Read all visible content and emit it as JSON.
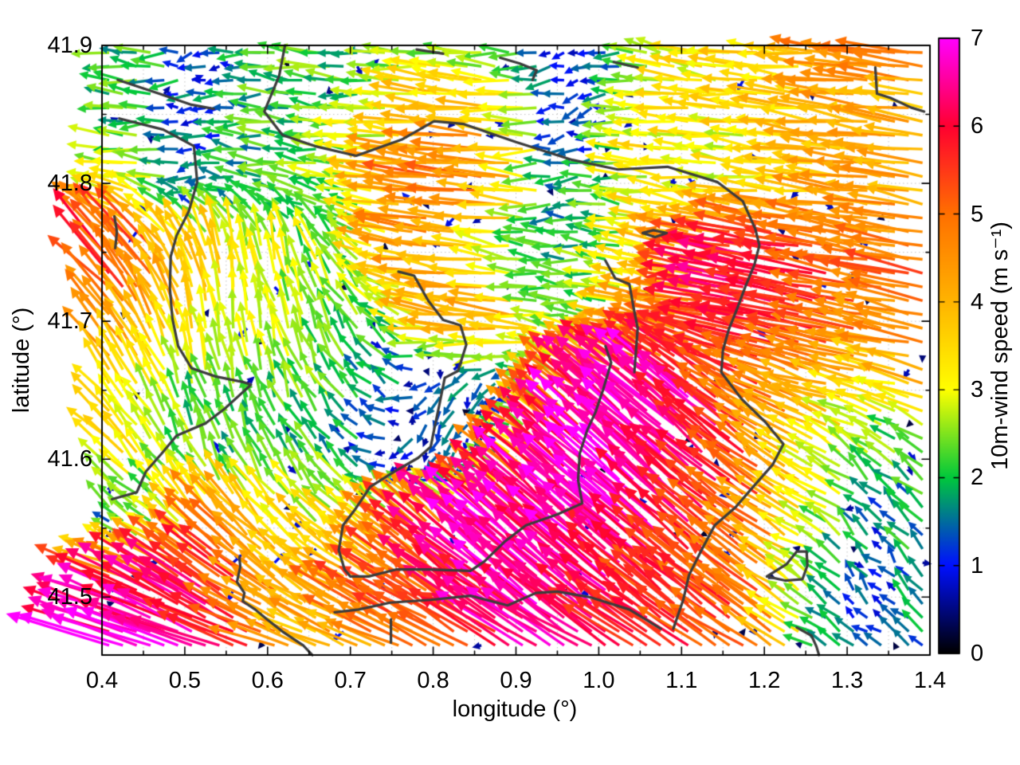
{
  "chart_data": {
    "type": "quiver",
    "title": "",
    "xlabel": "longitude (°)",
    "ylabel": "latitude (°)",
    "xlim": [
      0.4,
      1.4
    ],
    "ylim": [
      41.458,
      41.9
    ],
    "x_ticks": {
      "values": [
        0.4,
        0.5,
        0.6,
        0.7,
        0.8,
        0.9,
        1.0,
        1.1,
        1.2,
        1.3,
        1.4
      ],
      "labels": [
        "0.4",
        "0.5",
        "0.6",
        "0.7",
        "0.8",
        "0.9",
        "1.0",
        "1.1",
        "1.2",
        "1.3",
        "1.4"
      ]
    },
    "y_ticks": {
      "values": [
        41.5,
        41.6,
        41.7,
        41.8,
        41.9
      ],
      "labels": [
        "41.5",
        "41.6",
        "41.7",
        "41.8",
        "41.9"
      ]
    },
    "minor_tick_step": 0.05,
    "grid": {
      "style": "dotted",
      "step": 0.05,
      "color": "#c3c3c3"
    },
    "contour_color": "#3c3c3c",
    "colorbar": {
      "label": "10m-wind speed (m s⁻¹)",
      "min": 0,
      "max": 7,
      "tick_labels": [
        "0",
        "1",
        "2",
        "3",
        "4",
        "5",
        "6",
        "7"
      ],
      "palette_stops": [
        [
          0,
          "#000000"
        ],
        [
          1,
          "#0010FF"
        ],
        [
          2,
          "#00C83C"
        ],
        [
          3,
          "#FFFF00"
        ],
        [
          4,
          "#FFB400"
        ],
        [
          5,
          "#FF7000"
        ],
        [
          6,
          "#FF0030"
        ],
        [
          7,
          "#FF00FF"
        ]
      ]
    },
    "wind_field": {
      "units": "m s⁻¹",
      "lon": [
        0.4,
        0.45,
        0.5,
        0.55,
        0.6,
        0.65,
        0.7,
        0.75,
        0.8,
        0.85,
        0.9,
        0.95,
        1.0,
        1.05,
        1.1,
        1.15,
        1.2,
        1.25,
        1.3,
        1.35,
        1.4
      ],
      "lat": [
        41.9,
        41.85,
        41.8,
        41.75,
        41.7,
        41.65,
        41.6,
        41.55,
        41.5,
        41.46
      ],
      "u": [
        [
          -2,
          -2.2,
          -1.6,
          -1,
          -2,
          -2.3,
          -2,
          -2.2,
          -2.5,
          -2.2,
          -2,
          -0.9,
          -1,
          -2.5,
          -3,
          -3.3,
          -3.5,
          -3.2,
          -4.5,
          -5,
          -4.5
        ],
        [
          -2.2,
          -2,
          -1.2,
          -1.5,
          -2,
          -2.2,
          -2.4,
          -3,
          -4,
          -4.2,
          -3.5,
          -1,
          -1.2,
          -3,
          -3.2,
          -3,
          -3.4,
          -3.6,
          -3.8,
          -4,
          -3.8
        ],
        [
          -3,
          -3,
          -1.2,
          -1.8,
          -2,
          -2.2,
          -2.5,
          -3.8,
          -4.8,
          -5,
          -4,
          -1.5,
          -1.8,
          -3,
          -3.2,
          -3,
          -3.2,
          -3.5,
          -4,
          -4.2,
          -4
        ],
        [
          -4,
          -3.5,
          -1.8,
          -0.8,
          -0.5,
          -1,
          -1.5,
          -3.5,
          -4.2,
          -4,
          -2.2,
          -2,
          -2.2,
          -3,
          -3.5,
          -5.5,
          -6.3,
          -5.5,
          -5,
          -4.8,
          -5
        ],
        [
          -3.5,
          -2,
          -1,
          -0.6,
          -0.7,
          -0.8,
          -1.2,
          -2,
          -3.5,
          -4.2,
          -4,
          -2.2,
          -2.4,
          -3.8,
          -4.2,
          -5.5,
          -5.8,
          -5.5,
          -5.2,
          -4.5,
          -4.8
        ],
        [
          -2.2,
          -1.5,
          -0.8,
          -0.6,
          -0.8,
          -1,
          -1.4,
          -1.2,
          -0.8,
          -0.5,
          -0.8,
          -3,
          -4.5,
          -5,
          -5,
          -5,
          -4.5,
          -4,
          -3.5,
          -3,
          -3.5
        ],
        [
          -2.5,
          -2,
          -1,
          -0.8,
          -1,
          -1.2,
          -1.2,
          -0.8,
          -0.5,
          -0.6,
          -3.5,
          -4.5,
          -5,
          -5,
          -4.8,
          -4.5,
          -4,
          -3,
          -2,
          -1.5,
          -2
        ],
        [
          -1.5,
          -2,
          -2.5,
          -3.2,
          -2.5,
          -2,
          -2.5,
          -3,
          -4,
          -5,
          -5.2,
          -5,
          -5.2,
          -5,
          -4.8,
          -4.5,
          -4,
          -3,
          -1.5,
          -1,
          -1.5
        ],
        [
          -6,
          -6,
          -5.5,
          -5,
          -4,
          -3,
          -4,
          -4.5,
          -4.5,
          -5,
          -5,
          -5,
          -5,
          -4.8,
          -4.5,
          -4.2,
          -4,
          -2,
          -1,
          -0.8,
          -1
        ],
        [
          -6.5,
          -6.5,
          -6,
          -5.5,
          -4.5,
          -3.5,
          -3.8,
          -4,
          -4.5,
          -5,
          -5.5,
          -5.5,
          -5.2,
          -5,
          -4.8,
          -4.5,
          -4.2,
          -2,
          -1,
          -0.6,
          -0.8
        ]
      ],
      "v": [
        [
          0.3,
          0.2,
          -0.3,
          -0.3,
          0,
          0.2,
          0.3,
          0,
          0.3,
          0.2,
          0.1,
          -0.4,
          -0.5,
          0.4,
          0.5,
          0.3,
          0.4,
          0.3,
          0.6,
          0.5,
          0.5
        ],
        [
          0.2,
          0,
          -0.2,
          0,
          0.2,
          0.3,
          0.2,
          0.3,
          0.4,
          0.5,
          0.2,
          -0.4,
          -0.3,
          0.4,
          0.4,
          0.3,
          0.4,
          0.5,
          0.5,
          0.6,
          0.5
        ],
        [
          0.4,
          0.5,
          -0.2,
          0.2,
          0.3,
          0.2,
          0.3,
          0.4,
          0.5,
          0.5,
          0.4,
          -0.2,
          0,
          0.3,
          0.4,
          0.3,
          0.4,
          0.4,
          0.5,
          0.5,
          0.5
        ],
        [
          4.5,
          3.8,
          3.5,
          3.2,
          3,
          2.5,
          2,
          0.8,
          0.5,
          0.5,
          0.3,
          0.2,
          0.3,
          0.4,
          0.8,
          1,
          1.2,
          1,
          0.8,
          0.8,
          1
        ],
        [
          3.5,
          3.8,
          3.6,
          3.2,
          2.8,
          2.4,
          2,
          1.2,
          0.6,
          0.5,
          0.5,
          0.2,
          0.3,
          0.6,
          0.8,
          1,
          1.2,
          1.2,
          1,
          0.9,
          1
        ],
        [
          2.8,
          2.8,
          2.4,
          2.2,
          2.2,
          2,
          1.6,
          0.6,
          -0.8,
          -1,
          -0.9,
          2.5,
          3.5,
          4,
          4.5,
          3.5,
          2,
          1.5,
          1,
          0.8,
          1
        ],
        [
          2.5,
          2.2,
          2,
          2,
          1.8,
          1.6,
          1.2,
          -0.5,
          -1.2,
          -1,
          3,
          4,
          4.5,
          4.8,
          4.5,
          4,
          3,
          2,
          1.5,
          1.2,
          1.5
        ],
        [
          0.8,
          1.2,
          2.5,
          3.2,
          2.8,
          2.5,
          2,
          2.5,
          3.5,
          4,
          4.3,
          4.5,
          4.5,
          4.2,
          4,
          3.5,
          2.5,
          1.5,
          1.5,
          1,
          1.2
        ],
        [
          2,
          2.5,
          3,
          3.5,
          2.5,
          2,
          2,
          2.5,
          3,
          3.5,
          4,
          4.2,
          4,
          3.8,
          3.5,
          3.2,
          3,
          1.5,
          1.2,
          1,
          1.5
        ],
        [
          1.5,
          2,
          2.5,
          2,
          1.5,
          1.5,
          1.8,
          2,
          2.2,
          2.5,
          3,
          3.5,
          3.2,
          3,
          3,
          3,
          2.8,
          1,
          0.8,
          0.6,
          1
        ]
      ]
    },
    "contours": [
      [
        [
          0.419,
          41.875
        ],
        [
          0.469,
          41.865
        ],
        [
          0.508,
          41.857
        ],
        [
          0.535,
          41.854
        ]
      ],
      [
        [
          0.421,
          41.847
        ],
        [
          0.474,
          41.839
        ],
        [
          0.511,
          41.827
        ],
        [
          0.515,
          41.801
        ],
        [
          0.505,
          41.78
        ],
        [
          0.49,
          41.762
        ],
        [
          0.483,
          41.747
        ],
        [
          0.482,
          41.724
        ],
        [
          0.485,
          41.702
        ],
        [
          0.492,
          41.682
        ],
        [
          0.508,
          41.666
        ],
        [
          0.537,
          41.66
        ],
        [
          0.57,
          41.656
        ],
        [
          0.58,
          41.654
        ],
        [
          0.549,
          41.637
        ],
        [
          0.525,
          41.626
        ],
        [
          0.49,
          41.617
        ],
        [
          0.472,
          41.604
        ],
        [
          0.453,
          41.591
        ],
        [
          0.442,
          41.576
        ],
        [
          0.412,
          41.571
        ]
      ],
      [
        [
          0.415,
          41.776
        ],
        [
          0.418,
          41.765
        ],
        [
          0.416,
          41.753
        ]
      ],
      [
        [
          0.621,
          41.9
        ],
        [
          0.614,
          41.878
        ],
        [
          0.596,
          41.852
        ],
        [
          0.618,
          41.835
        ],
        [
          0.657,
          41.827
        ],
        [
          0.707,
          41.82
        ],
        [
          0.763,
          41.832
        ],
        [
          0.801,
          41.845
        ],
        [
          0.837,
          41.843
        ],
        [
          0.9,
          41.83
        ],
        [
          0.968,
          41.817
        ],
        [
          1.023,
          41.81
        ],
        [
          1.083,
          41.812
        ],
        [
          1.143,
          41.801
        ],
        [
          1.174,
          41.787
        ],
        [
          1.189,
          41.767
        ],
        [
          1.194,
          41.755
        ],
        [
          1.188,
          41.741
        ],
        [
          1.177,
          41.725
        ],
        [
          1.167,
          41.709
        ],
        [
          1.157,
          41.694
        ],
        [
          1.15,
          41.679
        ],
        [
          1.148,
          41.663
        ],
        [
          1.172,
          41.644
        ],
        [
          1.201,
          41.627
        ],
        [
          1.223,
          41.611
        ],
        [
          1.21,
          41.596
        ],
        [
          1.188,
          41.581
        ],
        [
          1.165,
          41.565
        ],
        [
          1.14,
          41.552
        ],
        [
          1.124,
          41.534
        ],
        [
          1.109,
          41.516
        ],
        [
          1.102,
          41.498
        ],
        [
          1.09,
          41.477
        ]
      ],
      [
        [
          0.758,
          41.736
        ],
        [
          0.777,
          41.733
        ],
        [
          0.794,
          41.715
        ],
        [
          0.812,
          41.701
        ],
        [
          0.833,
          41.697
        ],
        [
          0.84,
          41.683
        ],
        [
          0.83,
          41.664
        ],
        [
          0.814,
          41.659
        ],
        [
          0.808,
          41.641
        ],
        [
          0.801,
          41.621
        ],
        [
          0.797,
          41.609
        ],
        [
          0.782,
          41.601
        ],
        [
          0.753,
          41.591
        ],
        [
          0.724,
          41.58
        ],
        [
          0.705,
          41.563
        ],
        [
          0.691,
          41.552
        ],
        [
          0.686,
          41.534
        ],
        [
          0.693,
          41.52
        ],
        [
          0.7,
          41.515
        ],
        [
          0.722,
          41.515
        ],
        [
          0.755,
          41.52
        ],
        [
          0.794,
          41.52
        ],
        [
          0.845,
          41.519
        ],
        [
          0.862,
          41.526
        ],
        [
          0.886,
          41.54
        ],
        [
          0.912,
          41.552
        ],
        [
          0.95,
          41.56
        ],
        [
          0.98,
          41.568
        ],
        [
          0.975,
          41.585
        ],
        [
          0.977,
          41.604
        ],
        [
          0.986,
          41.621
        ],
        [
          0.996,
          41.634
        ],
        [
          1.005,
          41.65
        ],
        [
          1.015,
          41.67
        ],
        [
          1.008,
          41.682
        ]
      ],
      [
        [
          1.008,
          41.744
        ],
        [
          1.02,
          41.731
        ],
        [
          1.037,
          41.727
        ],
        [
          1.042,
          41.71
        ],
        [
          1.047,
          41.695
        ],
        [
          1.045,
          41.679
        ],
        [
          1.043,
          41.663
        ]
      ],
      [
        [
          0.681,
          41.489
        ],
        [
          0.71,
          41.491
        ],
        [
          0.748,
          41.496
        ],
        [
          0.797,
          41.498
        ],
        [
          0.845,
          41.501
        ],
        [
          0.89,
          41.494
        ],
        [
          0.924,
          41.503
        ],
        [
          0.95,
          41.504
        ],
        [
          0.989,
          41.5
        ],
        [
          1.037,
          41.491
        ],
        [
          1.075,
          41.477
        ]
      ],
      [
        [
          0.566,
          41.529
        ],
        [
          0.567,
          41.522
        ],
        [
          0.563,
          41.511
        ],
        [
          0.572,
          41.503
        ],
        [
          0.57,
          41.497
        ],
        [
          0.585,
          41.491
        ],
        [
          0.599,
          41.484
        ],
        [
          0.618,
          41.475
        ],
        [
          0.643,
          41.465
        ],
        [
          0.654,
          41.458
        ]
      ],
      [
        [
          1.203,
          41.515
        ],
        [
          1.227,
          41.524
        ],
        [
          1.239,
          41.533
        ],
        [
          1.251,
          41.533
        ],
        [
          1.252,
          41.523
        ],
        [
          1.246,
          41.513
        ],
        [
          1.225,
          41.512
        ],
        [
          1.203,
          41.515
        ]
      ],
      [
        [
          1.239,
          41.478
        ],
        [
          1.257,
          41.472
        ],
        [
          1.263,
          41.464
        ],
        [
          1.266,
          41.458
        ]
      ],
      [
        [
          1.334,
          41.884
        ],
        [
          1.336,
          41.865
        ],
        [
          1.352,
          41.862
        ],
        [
          1.377,
          41.855
        ],
        [
          1.393,
          41.852
        ]
      ],
      [
        [
          0.78,
          41.897
        ],
        [
          0.812,
          41.894
        ]
      ],
      [
        [
          1.018,
          41.888
        ],
        [
          1.047,
          41.884
        ]
      ],
      [
        [
          0.881,
          41.891
        ],
        [
          0.904,
          41.887
        ],
        [
          0.925,
          41.882
        ],
        [
          0.92,
          41.875
        ]
      ],
      [
        [
          1.053,
          41.764
        ],
        [
          1.066,
          41.766
        ],
        [
          1.082,
          41.764
        ],
        [
          1.068,
          41.761
        ],
        [
          1.053,
          41.764
        ]
      ],
      [
        [
          0.749,
          41.484
        ],
        [
          0.749,
          41.467
        ]
      ]
    ]
  }
}
